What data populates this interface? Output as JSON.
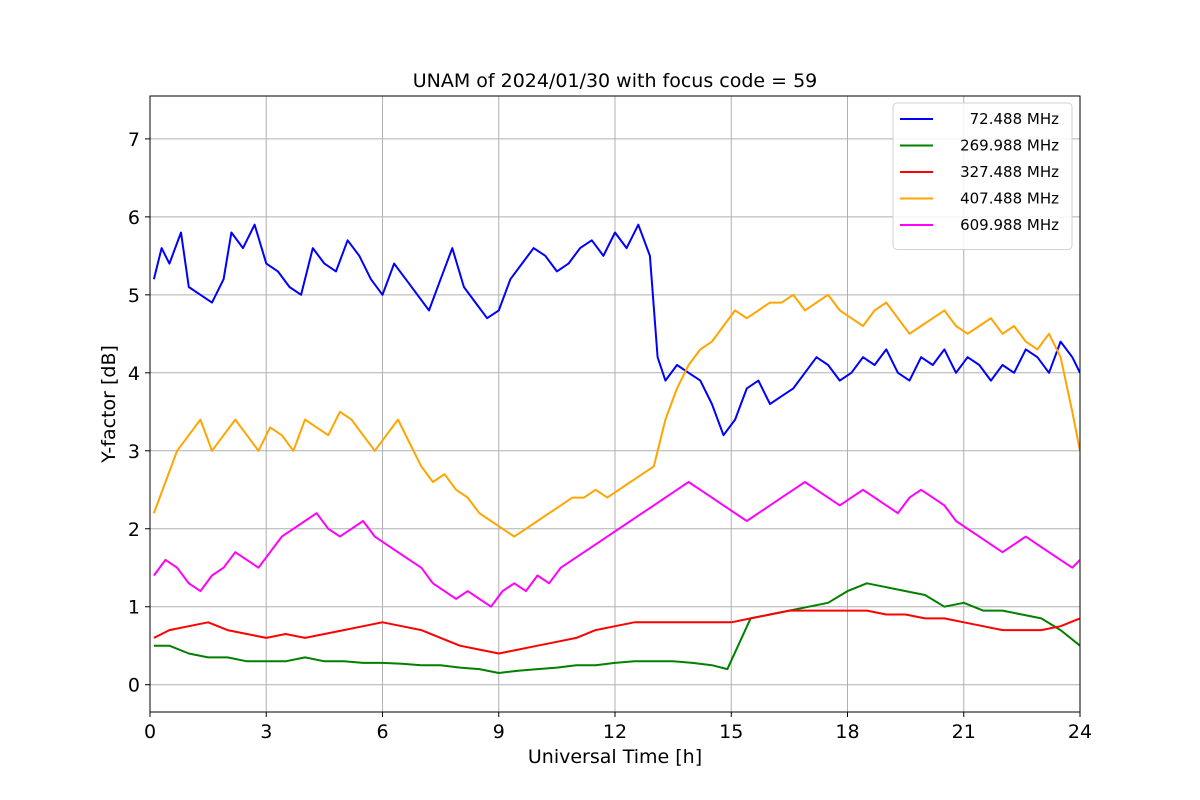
{
  "chart_data": {
    "type": "line",
    "title": "UNAM of 2024/01/30 with focus code = 59",
    "xlabel": "Universal Time [h]",
    "ylabel": "Y-factor [dB]",
    "xlim": [
      0,
      24
    ],
    "ylim": [
      -0.35,
      7.55
    ],
    "xticks": [
      0,
      3,
      6,
      9,
      12,
      15,
      18,
      21,
      24
    ],
    "yticks": [
      0,
      1,
      2,
      3,
      4,
      5,
      6,
      7
    ],
    "grid": true,
    "legend_position": "upper right",
    "series": [
      {
        "name": "72.488 MHz",
        "color": "#0000ff",
        "x": [
          0.1,
          0.3,
          0.5,
          0.8,
          1.0,
          1.3,
          1.6,
          1.9,
          2.1,
          2.4,
          2.7,
          3.0,
          3.3,
          3.6,
          3.9,
          4.2,
          4.5,
          4.8,
          5.1,
          5.4,
          5.7,
          6.0,
          6.3,
          6.6,
          6.9,
          7.2,
          7.5,
          7.8,
          8.1,
          8.4,
          8.7,
          9.0,
          9.3,
          9.6,
          9.9,
          10.2,
          10.5,
          10.8,
          11.1,
          11.4,
          11.7,
          12.0,
          12.3,
          12.6,
          12.9,
          13.1,
          13.3,
          13.6,
          13.9,
          14.2,
          14.5,
          14.8,
          15.1,
          15.4,
          15.7,
          16.0,
          16.3,
          16.6,
          16.9,
          17.2,
          17.5,
          17.8,
          18.1,
          18.4,
          18.7,
          19.0,
          19.3,
          19.6,
          19.9,
          20.2,
          20.5,
          20.8,
          21.1,
          21.4,
          21.7,
          22.0,
          22.3,
          22.6,
          22.9,
          23.2,
          23.5,
          23.8,
          24.0
        ],
        "y": [
          5.2,
          5.6,
          5.4,
          5.8,
          5.1,
          5.0,
          4.9,
          5.2,
          5.8,
          5.6,
          5.9,
          5.4,
          5.3,
          5.1,
          5.0,
          5.6,
          5.4,
          5.3,
          5.7,
          5.5,
          5.2,
          5.0,
          5.4,
          5.2,
          5.0,
          4.8,
          5.2,
          5.6,
          5.1,
          4.9,
          4.7,
          4.8,
          5.2,
          5.4,
          5.6,
          5.5,
          5.3,
          5.4,
          5.6,
          5.7,
          5.5,
          5.8,
          5.6,
          5.9,
          5.5,
          4.2,
          3.9,
          4.1,
          4.0,
          3.9,
          3.6,
          3.2,
          3.4,
          3.8,
          3.9,
          3.6,
          3.7,
          3.8,
          4.0,
          4.2,
          4.1,
          3.9,
          4.0,
          4.2,
          4.1,
          4.3,
          4.0,
          3.9,
          4.2,
          4.1,
          4.3,
          4.0,
          4.2,
          4.1,
          3.9,
          4.1,
          4.0,
          4.3,
          4.2,
          4.0,
          4.4,
          4.2,
          4.0
        ]
      },
      {
        "name": "269.988 MHz",
        "color": "#008000",
        "x": [
          0.1,
          0.5,
          1.0,
          1.5,
          2.0,
          2.5,
          3.0,
          3.5,
          4.0,
          4.5,
          5.0,
          5.5,
          6.0,
          6.5,
          7.0,
          7.5,
          8.0,
          8.5,
          9.0,
          9.5,
          10.0,
          10.5,
          11.0,
          11.5,
          12.0,
          12.5,
          13.0,
          13.5,
          14.0,
          14.5,
          14.9,
          15.5,
          16.0,
          16.5,
          17.0,
          17.5,
          18.0,
          18.5,
          19.0,
          19.5,
          20.0,
          20.5,
          21.0,
          21.5,
          22.0,
          22.5,
          23.0,
          23.5,
          24.0
        ],
        "y": [
          0.5,
          0.5,
          0.4,
          0.35,
          0.35,
          0.3,
          0.3,
          0.3,
          0.35,
          0.3,
          0.3,
          0.28,
          0.28,
          0.27,
          0.25,
          0.25,
          0.22,
          0.2,
          0.15,
          0.18,
          0.2,
          0.22,
          0.25,
          0.25,
          0.28,
          0.3,
          0.3,
          0.3,
          0.28,
          0.25,
          0.2,
          0.85,
          0.9,
          0.95,
          1.0,
          1.05,
          1.2,
          1.3,
          1.25,
          1.2,
          1.15,
          1.0,
          1.05,
          0.95,
          0.95,
          0.9,
          0.85,
          0.7,
          0.5
        ]
      },
      {
        "name": "327.488 MHz",
        "color": "#ff0000",
        "x": [
          0.1,
          0.5,
          1.0,
          1.5,
          2.0,
          2.5,
          3.0,
          3.5,
          4.0,
          4.5,
          5.0,
          5.5,
          6.0,
          6.5,
          7.0,
          7.5,
          8.0,
          8.5,
          9.0,
          9.5,
          10.0,
          10.5,
          11.0,
          11.5,
          12.0,
          12.5,
          13.0,
          13.5,
          14.0,
          14.5,
          15.0,
          15.5,
          16.0,
          16.5,
          17.0,
          17.5,
          18.0,
          18.5,
          19.0,
          19.5,
          20.0,
          20.5,
          21.0,
          21.5,
          22.0,
          22.5,
          23.0,
          23.5,
          24.0
        ],
        "y": [
          0.6,
          0.7,
          0.75,
          0.8,
          0.7,
          0.65,
          0.6,
          0.65,
          0.6,
          0.65,
          0.7,
          0.75,
          0.8,
          0.75,
          0.7,
          0.6,
          0.5,
          0.45,
          0.4,
          0.45,
          0.5,
          0.55,
          0.6,
          0.7,
          0.75,
          0.8,
          0.8,
          0.8,
          0.8,
          0.8,
          0.8,
          0.85,
          0.9,
          0.95,
          0.95,
          0.95,
          0.95,
          0.95,
          0.9,
          0.9,
          0.85,
          0.85,
          0.8,
          0.75,
          0.7,
          0.7,
          0.7,
          0.75,
          0.85
        ]
      },
      {
        "name": "407.488 MHz",
        "color": "#ffa500",
        "x": [
          0.1,
          0.4,
          0.7,
          1.0,
          1.3,
          1.6,
          1.9,
          2.2,
          2.5,
          2.8,
          3.1,
          3.4,
          3.7,
          4.0,
          4.3,
          4.6,
          4.9,
          5.2,
          5.5,
          5.8,
          6.1,
          6.4,
          6.7,
          7.0,
          7.3,
          7.6,
          7.9,
          8.2,
          8.5,
          8.8,
          9.1,
          9.4,
          9.7,
          10.0,
          10.3,
          10.6,
          10.9,
          11.2,
          11.5,
          11.8,
          12.1,
          12.4,
          12.7,
          13.0,
          13.3,
          13.6,
          13.9,
          14.2,
          14.5,
          14.8,
          15.1,
          15.4,
          15.7,
          16.0,
          16.3,
          16.6,
          16.9,
          17.2,
          17.5,
          17.8,
          18.1,
          18.4,
          18.7,
          19.0,
          19.3,
          19.6,
          19.9,
          20.2,
          20.5,
          20.8,
          21.1,
          21.4,
          21.7,
          22.0,
          22.3,
          22.6,
          22.9,
          23.2,
          23.5,
          23.8,
          24.0
        ],
        "y": [
          2.2,
          2.6,
          3.0,
          3.2,
          3.4,
          3.0,
          3.2,
          3.4,
          3.2,
          3.0,
          3.3,
          3.2,
          3.0,
          3.4,
          3.3,
          3.2,
          3.5,
          3.4,
          3.2,
          3.0,
          3.2,
          3.4,
          3.1,
          2.8,
          2.6,
          2.7,
          2.5,
          2.4,
          2.2,
          2.1,
          2.0,
          1.9,
          2.0,
          2.1,
          2.2,
          2.3,
          2.4,
          2.4,
          2.5,
          2.4,
          2.5,
          2.6,
          2.7,
          2.8,
          3.4,
          3.8,
          4.1,
          4.3,
          4.4,
          4.6,
          4.8,
          4.7,
          4.8,
          4.9,
          4.9,
          5.0,
          4.8,
          4.9,
          5.0,
          4.8,
          4.7,
          4.6,
          4.8,
          4.9,
          4.7,
          4.5,
          4.6,
          4.7,
          4.8,
          4.6,
          4.5,
          4.6,
          4.7,
          4.5,
          4.6,
          4.4,
          4.3,
          4.5,
          4.2,
          3.5,
          3.0
        ]
      },
      {
        "name": "609.988 MHz",
        "color": "#ff00ff",
        "x": [
          0.1,
          0.4,
          0.7,
          1.0,
          1.3,
          1.6,
          1.9,
          2.2,
          2.5,
          2.8,
          3.1,
          3.4,
          3.7,
          4.0,
          4.3,
          4.6,
          4.9,
          5.2,
          5.5,
          5.8,
          6.1,
          6.4,
          6.7,
          7.0,
          7.3,
          7.6,
          7.9,
          8.2,
          8.5,
          8.8,
          9.1,
          9.4,
          9.7,
          10.0,
          10.3,
          10.6,
          10.9,
          11.2,
          11.5,
          11.8,
          12.1,
          12.4,
          12.7,
          13.0,
          13.3,
          13.6,
          13.9,
          14.2,
          14.5,
          14.8,
          15.1,
          15.4,
          15.7,
          16.0,
          16.3,
          16.6,
          16.9,
          17.2,
          17.5,
          17.8,
          18.1,
          18.4,
          18.7,
          19.0,
          19.3,
          19.6,
          19.9,
          20.2,
          20.5,
          20.8,
          21.1,
          21.4,
          21.7,
          22.0,
          22.3,
          22.6,
          22.9,
          23.2,
          23.5,
          23.8,
          24.0
        ],
        "y": [
          1.4,
          1.6,
          1.5,
          1.3,
          1.2,
          1.4,
          1.5,
          1.7,
          1.6,
          1.5,
          1.7,
          1.9,
          2.0,
          2.1,
          2.2,
          2.0,
          1.9,
          2.0,
          2.1,
          1.9,
          1.8,
          1.7,
          1.6,
          1.5,
          1.3,
          1.2,
          1.1,
          1.2,
          1.1,
          1.0,
          1.2,
          1.3,
          1.2,
          1.4,
          1.3,
          1.5,
          1.6,
          1.7,
          1.8,
          1.9,
          2.0,
          2.1,
          2.2,
          2.3,
          2.4,
          2.5,
          2.6,
          2.5,
          2.4,
          2.3,
          2.2,
          2.1,
          2.2,
          2.3,
          2.4,
          2.5,
          2.6,
          2.5,
          2.4,
          2.3,
          2.4,
          2.5,
          2.4,
          2.3,
          2.2,
          2.4,
          2.5,
          2.4,
          2.3,
          2.1,
          2.0,
          1.9,
          1.8,
          1.7,
          1.8,
          1.9,
          1.8,
          1.7,
          1.6,
          1.5,
          1.6
        ]
      }
    ]
  }
}
